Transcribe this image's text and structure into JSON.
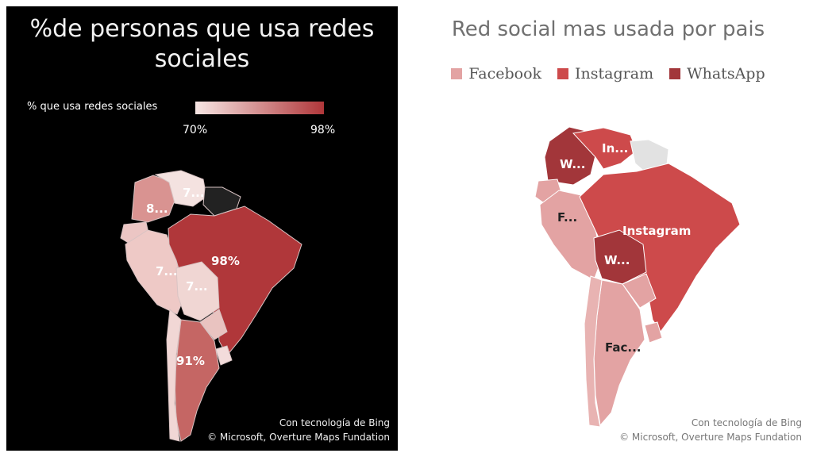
{
  "chart_data": [
    {
      "type": "choropleth-map",
      "title": "%de personas que usa redes sociales",
      "legend_title": "% que usa redes sociales",
      "scale": {
        "min_label": "70%",
        "max_label": "98%",
        "min_color": "#f7e6e4",
        "max_color": "#b0373a"
      },
      "region_labels": [
        {
          "region": "colombia",
          "label": "8..."
        },
        {
          "region": "venezuela",
          "label": "7..."
        },
        {
          "region": "peru",
          "label": "7..."
        },
        {
          "region": "bolivia",
          "label": "7..."
        },
        {
          "region": "brazil",
          "label": "98%"
        },
        {
          "region": "argentina",
          "label": "91%"
        }
      ],
      "credits": [
        "Con tecnología de Bing",
        "© Microsoft, Overture Maps Fundation"
      ]
    },
    {
      "type": "categorical-map",
      "title": "Red social mas usada por pais",
      "legend": [
        {
          "name": "Facebook",
          "color": "#e3a3a3"
        },
        {
          "name": "Instagram",
          "color": "#cd4a4b"
        },
        {
          "name": "WhatsApp",
          "color": "#a2363a"
        }
      ],
      "region_labels": [
        {
          "region": "venezuela",
          "label": "In..."
        },
        {
          "region": "colombia",
          "label": "W..."
        },
        {
          "region": "peru",
          "label": "F..."
        },
        {
          "region": "brazil",
          "label": "Instagram"
        },
        {
          "region": "bolivia",
          "label": "W..."
        },
        {
          "region": "argentina",
          "label": "Fac..."
        }
      ],
      "credits": [
        "Con tecnología de Bing",
        "© Microsoft, Overture Maps Fundation"
      ]
    }
  ]
}
